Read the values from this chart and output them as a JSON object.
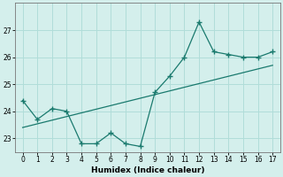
{
  "x": [
    0,
    1,
    2,
    3,
    4,
    5,
    6,
    7,
    8,
    9,
    10,
    11,
    12,
    13,
    14,
    15,
    16,
    17
  ],
  "y": [
    24.4,
    23.7,
    24.1,
    24.0,
    22.8,
    22.8,
    23.2,
    22.8,
    22.7,
    24.7,
    25.3,
    26.0,
    27.3,
    26.2,
    26.1,
    26.0,
    26.0,
    26.2
  ],
  "trend_x": [
    0,
    17
  ],
  "trend_y": [
    23.4,
    25.7
  ],
  "line_color": "#1a7a6e",
  "marker": "+",
  "bg_color": "#d4efec",
  "grid_color": "#b0ddd9",
  "xlabel": "Humidex (Indice chaleur)",
  "ylim": [
    22.5,
    28.0
  ],
  "xlim": [
    -0.5,
    17.5
  ],
  "yticks": [
    23,
    24,
    25,
    26,
    27
  ],
  "xticks": [
    0,
    1,
    2,
    3,
    4,
    5,
    6,
    7,
    8,
    9,
    10,
    11,
    12,
    13,
    14,
    15,
    16,
    17
  ],
  "label_fontsize": 6.5,
  "tick_fontsize": 5.5
}
